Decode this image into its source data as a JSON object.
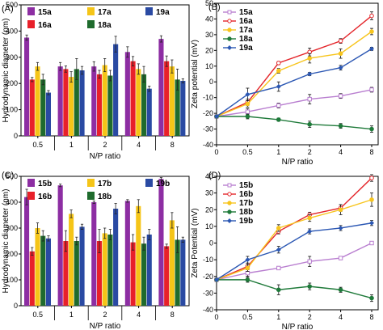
{
  "colors": {
    "purple": "#8d2ea3",
    "red": "#e8202a",
    "yellow": "#f5c518",
    "green": "#1f6b2d",
    "blue": "#2a4aa3",
    "line_purple": "#b97fd0",
    "line_red": "#e4262b",
    "line_yellow": "#f7c51e",
    "line_green": "#1f7a3a",
    "line_blue": "#2b57b3"
  },
  "chart_data": [
    {
      "panel": "(A)",
      "type": "bar",
      "ylabel": "Hydrodynamic diameter (nm)",
      "xlabel": "N/P ratio",
      "categories": [
        "0.5",
        "1",
        "2",
        "4",
        "8"
      ],
      "ylim": [
        0,
        500
      ],
      "yticks": [
        0,
        100,
        200,
        300,
        400,
        500
      ],
      "series": [
        {
          "name": "15a",
          "color": "purple",
          "values": [
            375,
            265,
            265,
            320,
            370
          ],
          "errors": [
            10,
            15,
            18,
            20,
            12
          ]
        },
        {
          "name": "16a",
          "color": "red",
          "values": [
            215,
            255,
            235,
            285,
            285
          ],
          "errors": [
            8,
            12,
            15,
            18,
            20
          ]
        },
        {
          "name": "17a",
          "color": "yellow",
          "values": [
            265,
            225,
            270,
            255,
            265
          ],
          "errors": [
            15,
            20,
            25,
            20,
            25
          ]
        },
        {
          "name": "18a",
          "color": "green",
          "values": [
            215,
            255,
            230,
            235,
            215
          ],
          "errors": [
            20,
            40,
            20,
            30,
            40
          ]
        },
        {
          "name": "19a",
          "color": "blue",
          "values": [
            165,
            250,
            350,
            180,
            210
          ],
          "errors": [
            8,
            15,
            30,
            10,
            8
          ]
        }
      ]
    },
    {
      "panel": "(B)",
      "type": "line",
      "ylabel": "Zeta potential (mV)",
      "xlabel": "N/P ratio",
      "x": [
        "0",
        "0.5",
        "1",
        "2",
        "4",
        "8"
      ],
      "ylim": [
        -40,
        50
      ],
      "yticks": [
        -40,
        -30,
        -20,
        -10,
        0,
        10,
        20,
        30,
        40,
        50
      ],
      "series": [
        {
          "name": "15a",
          "color": "line_purple",
          "values": [
            -22,
            -19,
            -15,
            -11,
            -9,
            -5
          ],
          "errors": [
            0,
            2,
            1.5,
            3,
            1.5,
            1.5
          ]
        },
        {
          "name": "16a",
          "color": "line_red",
          "values": [
            -22,
            -13,
            12,
            19,
            26,
            42
          ],
          "errors": [
            0,
            2,
            1,
            2.5,
            1.5,
            2.5
          ]
        },
        {
          "name": "17a",
          "color": "line_yellow",
          "values": [
            -22,
            -14,
            7,
            15,
            18,
            32
          ],
          "errors": [
            0,
            2,
            1.5,
            3,
            3,
            2
          ]
        },
        {
          "name": "18a",
          "color": "line_green",
          "values": [
            -22,
            -22,
            -24,
            -27,
            -28,
            -30
          ],
          "errors": [
            0,
            1.5,
            1,
            2,
            1.5,
            2
          ]
        },
        {
          "name": "19a",
          "color": "line_blue",
          "values": [
            -22,
            -8,
            -3,
            5,
            9,
            21
          ],
          "errors": [
            0,
            4,
            3,
            1,
            1.5,
            1
          ]
        }
      ]
    },
    {
      "panel": "(C)",
      "type": "bar",
      "ylabel": "Hydrodynamic diameter (nm)",
      "xlabel": "N/P ratio",
      "categories": [
        "0.5",
        "1",
        "2",
        "4",
        "8"
      ],
      "ylim": [
        0,
        500
      ],
      "yticks": [
        0,
        100,
        200,
        300,
        400,
        500
      ],
      "series": [
        {
          "name": "15b",
          "color": "purple",
          "values": [
            420,
            465,
            400,
            405,
            490
          ],
          "errors": [
            30,
            5,
            5,
            5,
            5
          ]
        },
        {
          "name": "16b",
          "color": "red",
          "values": [
            210,
            250,
            250,
            245,
            230
          ],
          "errors": [
            15,
            40,
            45,
            30,
            8
          ]
        },
        {
          "name": "17b",
          "color": "yellow",
          "values": [
            300,
            355,
            280,
            385,
            330
          ],
          "errors": [
            20,
            15,
            20,
            25,
            30
          ]
        },
        {
          "name": "18b",
          "color": "green",
          "values": [
            270,
            250,
            275,
            240,
            255
          ],
          "errors": [
            20,
            15,
            20,
            25,
            50
          ]
        },
        {
          "name": "19b",
          "color": "blue",
          "values": [
            260,
            305,
            375,
            275,
            255
          ],
          "errors": [
            10,
            10,
            20,
            20,
            10
          ]
        }
      ]
    },
    {
      "panel": "(D)",
      "type": "line",
      "ylabel": "Zeta Potential (mV)",
      "xlabel": "N/P ratio",
      "x": [
        "0",
        "0.5",
        "1",
        "2",
        "4",
        "8"
      ],
      "ylim": [
        -40,
        40
      ],
      "yticks": [
        -40,
        -30,
        -20,
        -10,
        0,
        10,
        20,
        30,
        40
      ],
      "series": [
        {
          "name": "15b",
          "color": "line_purple",
          "values": [
            -22,
            -18,
            -15,
            -11,
            -9,
            0
          ],
          "errors": [
            0,
            2,
            1,
            3,
            1,
            1
          ]
        },
        {
          "name": "16b",
          "color": "line_red",
          "values": [
            -22,
            -14,
            7,
            17,
            21,
            39
          ],
          "errors": [
            0,
            2,
            1.5,
            1.5,
            2,
            2
          ]
        },
        {
          "name": "17b",
          "color": "line_yellow",
          "values": [
            -22,
            -15,
            9,
            15,
            20,
            26
          ],
          "errors": [
            0,
            2,
            2,
            2,
            3,
            4
          ]
        },
        {
          "name": "18b",
          "color": "line_green",
          "values": [
            -22,
            -22,
            -28,
            -26,
            -28,
            -33
          ],
          "errors": [
            0,
            1.5,
            3,
            2,
            1.5,
            2
          ]
        },
        {
          "name": "19b",
          "color": "line_blue",
          "values": [
            -22,
            -10,
            -4,
            7,
            9,
            12
          ],
          "errors": [
            0,
            2,
            2,
            1.5,
            1.5,
            1.5
          ]
        }
      ]
    }
  ]
}
